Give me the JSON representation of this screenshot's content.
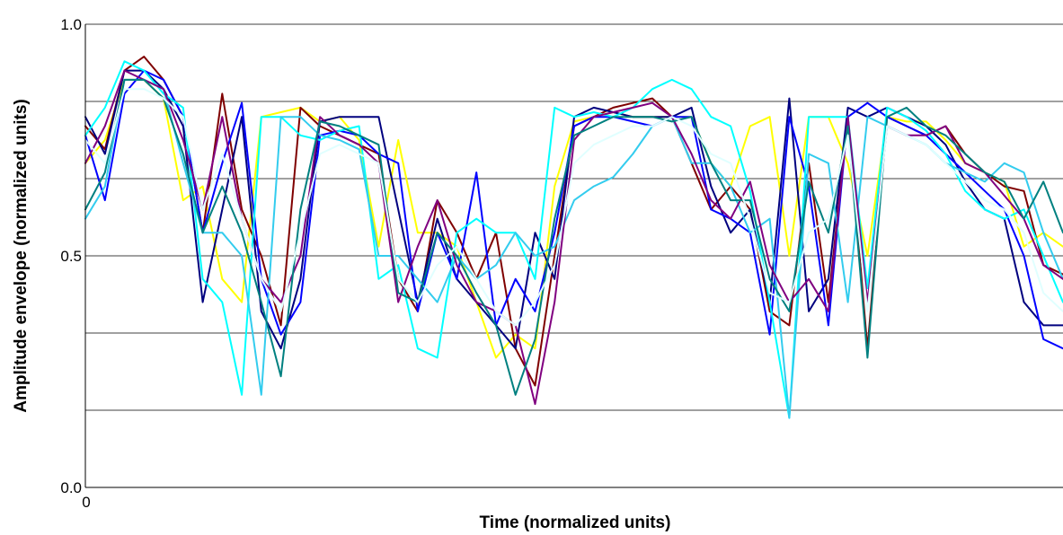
{
  "chart_data": {
    "type": "line",
    "xlabel": "Time (normalized units)",
    "ylabel": "Amplitude envelope (normalized units)",
    "xlim": [
      0,
      100
    ],
    "ylim": [
      0,
      1
    ],
    "x_tick_labels": [
      {
        "value": 0,
        "label": "0"
      }
    ],
    "y_tick_labels": [
      {
        "value": 0,
        "label": "0.0"
      },
      {
        "value": 0.5,
        "label": "0.5"
      },
      {
        "value": 1,
        "label": "1.0"
      }
    ],
    "gridlines_y": [
      0.1667,
      0.3333,
      0.5,
      0.6667,
      0.8333,
      1.0
    ],
    "grid": true,
    "legend": "none",
    "x": [
      0,
      2,
      4,
      6,
      8,
      10,
      12,
      14,
      16,
      18,
      20,
      22,
      24,
      26,
      28,
      30,
      32,
      34,
      36,
      38,
      40,
      42,
      44,
      46,
      48,
      50,
      52,
      54,
      56,
      58,
      60,
      62,
      64,
      66,
      68,
      70,
      72,
      74,
      76,
      78,
      80,
      82,
      84,
      86,
      88,
      90,
      92,
      94,
      96,
      98,
      100
    ],
    "series": [
      {
        "color": "#ffff00",
        "values": [
          0.7,
          0.75,
          0.88,
          0.88,
          0.84,
          0.62,
          0.65,
          0.45,
          0.4,
          0.8,
          0.81,
          0.82,
          0.79,
          0.8,
          0.75,
          0.52,
          0.75,
          0.55,
          0.55,
          0.52,
          0.4,
          0.28,
          0.33,
          0.3,
          0.65,
          0.79,
          0.8,
          0.81,
          0.8,
          0.8,
          0.8,
          0.8,
          0.7,
          0.65,
          0.78,
          0.8,
          0.5,
          0.8,
          0.8,
          0.7,
          0.5,
          0.8,
          0.79,
          0.79,
          0.75,
          0.7,
          0.68,
          0.66,
          0.52,
          0.55,
          0.52
        ]
      },
      {
        "color": "#7f0000",
        "values": [
          0.78,
          0.73,
          0.9,
          0.93,
          0.88,
          0.8,
          0.55,
          0.85,
          0.6,
          0.5,
          0.35,
          0.82,
          0.78,
          0.76,
          0.74,
          0.72,
          0.45,
          0.38,
          0.62,
          0.55,
          0.45,
          0.55,
          0.3,
          0.22,
          0.5,
          0.78,
          0.8,
          0.82,
          0.83,
          0.84,
          0.8,
          0.7,
          0.6,
          0.65,
          0.6,
          0.38,
          0.35,
          0.7,
          0.4,
          0.8,
          0.3,
          0.8,
          0.78,
          0.76,
          0.78,
          0.72,
          0.68,
          0.65,
          0.64,
          0.48,
          0.46
        ]
      },
      {
        "color": "#00007f",
        "values": [
          0.8,
          0.72,
          0.9,
          0.9,
          0.86,
          0.78,
          0.4,
          0.6,
          0.8,
          0.38,
          0.3,
          0.45,
          0.79,
          0.8,
          0.8,
          0.8,
          0.6,
          0.4,
          0.58,
          0.45,
          0.4,
          0.35,
          0.3,
          0.55,
          0.45,
          0.8,
          0.82,
          0.81,
          0.8,
          0.8,
          0.8,
          0.82,
          0.65,
          0.55,
          0.6,
          0.4,
          0.84,
          0.38,
          0.45,
          0.82,
          0.8,
          0.82,
          0.8,
          0.78,
          0.74,
          0.66,
          0.6,
          0.58,
          0.4,
          0.35,
          0.35
        ]
      },
      {
        "color": "#0000ff",
        "values": [
          0.76,
          0.62,
          0.85,
          0.9,
          0.88,
          0.8,
          0.55,
          0.7,
          0.83,
          0.45,
          0.33,
          0.4,
          0.76,
          0.77,
          0.76,
          0.72,
          0.7,
          0.38,
          0.55,
          0.45,
          0.68,
          0.35,
          0.45,
          0.38,
          0.55,
          0.78,
          0.8,
          0.8,
          0.79,
          0.78,
          0.8,
          0.8,
          0.6,
          0.58,
          0.55,
          0.33,
          0.8,
          0.65,
          0.35,
          0.8,
          0.83,
          0.8,
          0.78,
          0.76,
          0.72,
          0.68,
          0.64,
          0.6,
          0.5,
          0.32,
          0.3
        ]
      },
      {
        "color": "#00ffff",
        "values": [
          0.76,
          0.82,
          0.92,
          0.9,
          0.85,
          0.82,
          0.45,
          0.4,
          0.2,
          0.8,
          0.8,
          0.76,
          0.75,
          0.77,
          0.78,
          0.45,
          0.48,
          0.3,
          0.28,
          0.55,
          0.58,
          0.55,
          0.55,
          0.45,
          0.82,
          0.8,
          0.81,
          0.8,
          0.82,
          0.86,
          0.88,
          0.86,
          0.8,
          0.78,
          0.64,
          0.4,
          0.15,
          0.8,
          0.8,
          0.8,
          0.43,
          0.82,
          0.8,
          0.77,
          0.72,
          0.64,
          0.6,
          0.58,
          0.6,
          0.5,
          0.4
        ]
      },
      {
        "color": "#33ccee",
        "values": [
          0.58,
          0.65,
          0.88,
          0.88,
          0.86,
          0.7,
          0.55,
          0.55,
          0.5,
          0.2,
          0.8,
          0.8,
          0.76,
          0.75,
          0.73,
          0.5,
          0.5,
          0.45,
          0.4,
          0.5,
          0.45,
          0.48,
          0.55,
          0.5,
          0.52,
          0.62,
          0.65,
          0.67,
          0.72,
          0.78,
          0.8,
          0.7,
          0.7,
          0.65,
          0.55,
          0.58,
          0.15,
          0.72,
          0.7,
          0.4,
          0.8,
          0.78,
          0.76,
          0.74,
          0.7,
          0.68,
          0.66,
          0.7,
          0.68,
          0.55,
          0.45
        ]
      },
      {
        "color": "#800080",
        "values": [
          0.7,
          0.78,
          0.9,
          0.88,
          0.86,
          0.75,
          0.6,
          0.8,
          0.58,
          0.45,
          0.4,
          0.5,
          0.8,
          0.76,
          0.74,
          0.7,
          0.4,
          0.52,
          0.62,
          0.48,
          0.4,
          0.38,
          0.35,
          0.18,
          0.4,
          0.75,
          0.8,
          0.81,
          0.82,
          0.83,
          0.8,
          0.72,
          0.62,
          0.58,
          0.66,
          0.48,
          0.4,
          0.45,
          0.38,
          0.8,
          0.4,
          0.78,
          0.76,
          0.76,
          0.78,
          0.7,
          0.68,
          0.63,
          0.58,
          0.48,
          0.45
        ]
      },
      {
        "color": "#008080",
        "values": [
          0.6,
          0.68,
          0.88,
          0.88,
          0.84,
          0.72,
          0.55,
          0.65,
          0.55,
          0.4,
          0.24,
          0.6,
          0.79,
          0.78,
          0.76,
          0.74,
          0.42,
          0.4,
          0.55,
          0.5,
          0.42,
          0.35,
          0.2,
          0.32,
          0.58,
          0.76,
          0.78,
          0.8,
          0.8,
          0.8,
          0.79,
          0.8,
          0.7,
          0.62,
          0.62,
          0.45,
          0.38,
          0.66,
          0.55,
          0.78,
          0.28,
          0.8,
          0.82,
          0.78,
          0.76,
          0.72,
          0.68,
          0.66,
          0.58,
          0.66,
          0.55
        ]
      },
      {
        "color": "#e0ffff",
        "values": [
          0.75,
          0.7,
          0.86,
          0.86,
          0.84,
          0.8,
          0.6,
          0.72,
          0.58,
          0.45,
          0.38,
          0.55,
          0.72,
          0.74,
          0.72,
          0.7,
          0.45,
          0.4,
          0.48,
          0.52,
          0.45,
          0.38,
          0.35,
          0.4,
          0.48,
          0.7,
          0.74,
          0.76,
          0.78,
          0.78,
          0.8,
          0.78,
          0.72,
          0.7,
          0.58,
          0.42,
          0.4,
          0.55,
          0.58,
          0.76,
          0.38,
          0.78,
          0.76,
          0.74,
          0.7,
          0.66,
          0.62,
          0.6,
          0.55,
          0.42,
          0.38
        ]
      }
    ]
  }
}
